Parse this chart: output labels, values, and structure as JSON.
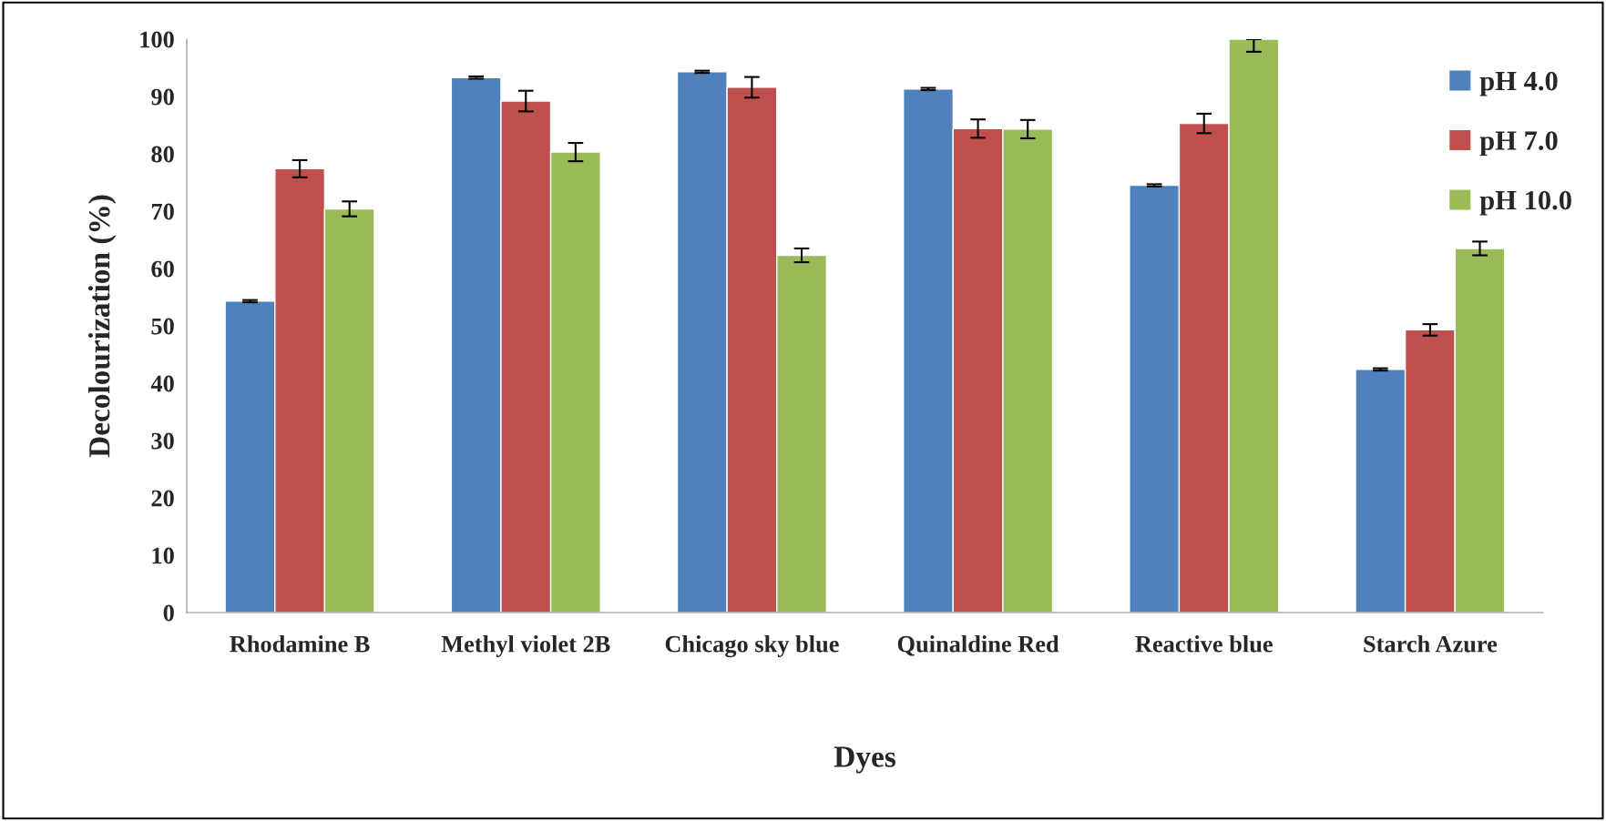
{
  "chart_data": {
    "type": "bar",
    "xlabel": "Dyes",
    "ylabel": "Decolourization (%)",
    "categories": [
      "Rhodamine B",
      "Methyl violet 2B",
      "Chicago sky blue",
      "Quinaldine Red",
      "Reactive blue",
      "Starch Azure"
    ],
    "series": [
      {
        "name": "pH 4.0",
        "color": "#4f81bd",
        "values": [
          54.3,
          93.3,
          94.3,
          91.3,
          74.5,
          42.4
        ],
        "errors": [
          0.2,
          0.2,
          0.2,
          0.2,
          0.2,
          0.2
        ]
      },
      {
        "name": "pH 7.0",
        "color": "#c0504d",
        "values": [
          77.4,
          89.2,
          91.6,
          84.4,
          85.3,
          49.3
        ],
        "errors": [
          1.5,
          1.8,
          1.8,
          1.6,
          1.7,
          1.0
        ]
      },
      {
        "name": "pH 10.0",
        "color": "#9bbb59",
        "values": [
          70.4,
          80.3,
          62.3,
          84.3,
          100,
          63.5
        ],
        "errors": [
          1.3,
          1.6,
          1.2,
          1.6,
          [
            97.8,
            100
          ],
          1.2
        ]
      }
    ],
    "ylim": [
      0,
      100
    ],
    "yticks": [
      0,
      10,
      20,
      30,
      40,
      50,
      60,
      70,
      80,
      90,
      100
    ],
    "grid": false,
    "legend": "top right"
  }
}
